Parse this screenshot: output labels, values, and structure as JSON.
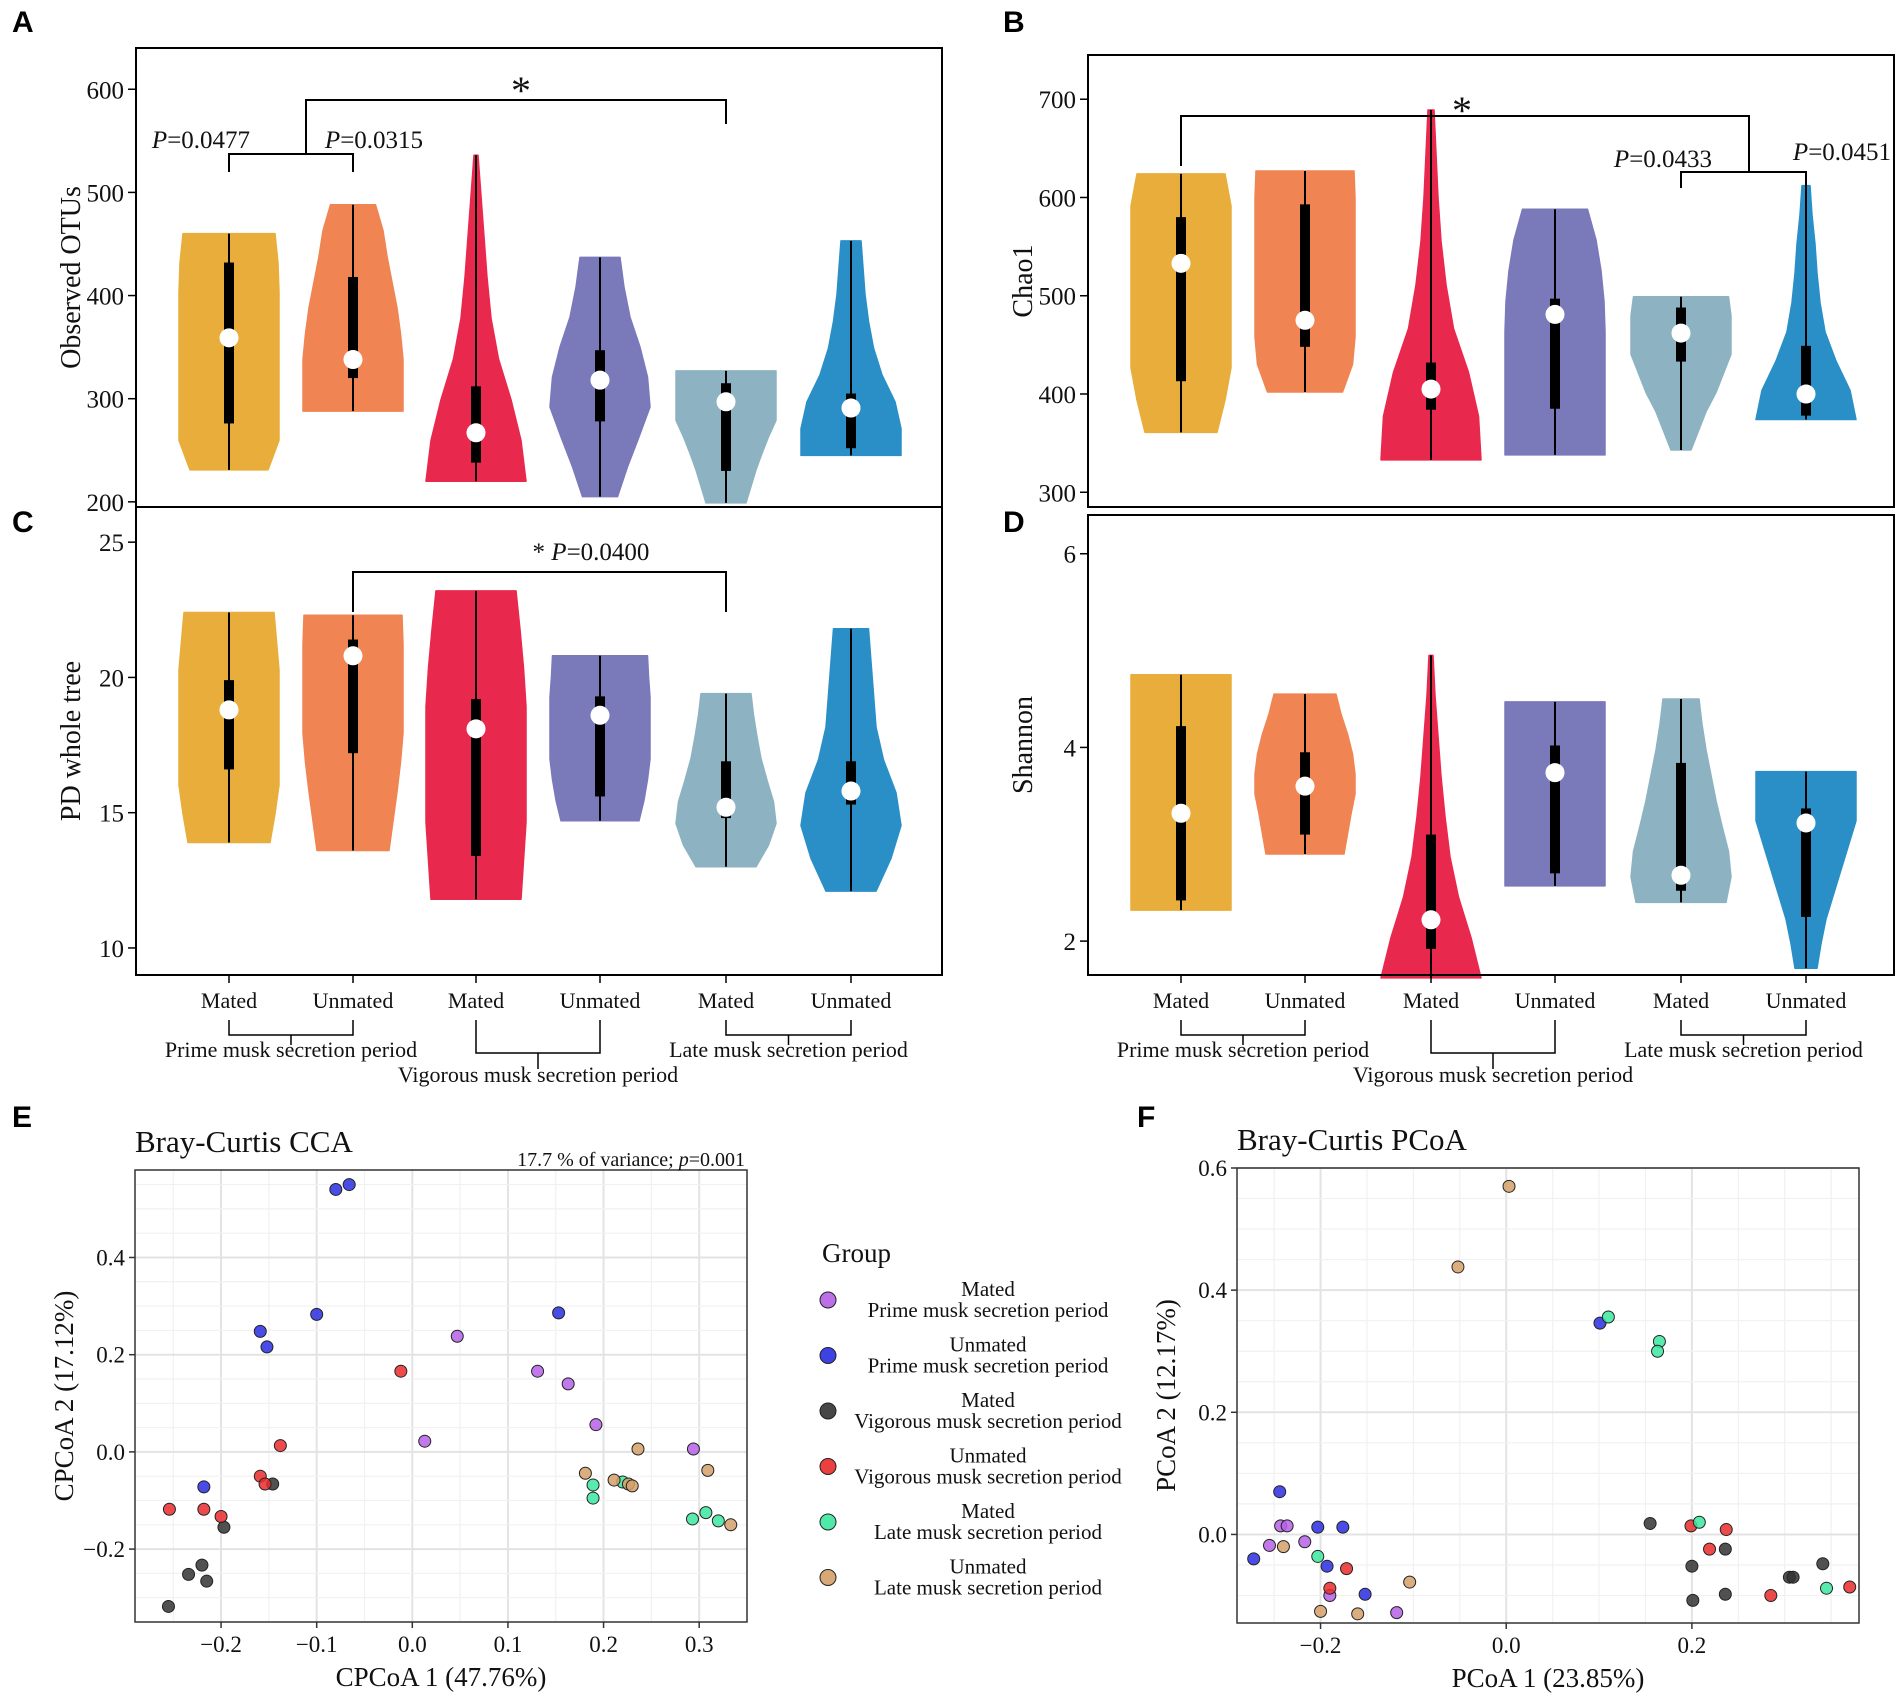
{
  "colors": {
    "violins": [
      "#e8ad3a",
      "#f08452",
      "#e9284e",
      "#7a79ba",
      "#8db3c2",
      "#2b8fc7"
    ],
    "groups": [
      "#b560e6",
      "#2a2ee0",
      "#333333",
      "#ea2b2b",
      "#3ce8a0",
      "#d4a067"
    ]
  },
  "x_categories": {
    "labels": [
      "Mated",
      "Unmated",
      "Mated",
      "Unmated",
      "Mated",
      "Unmated"
    ],
    "periods": [
      "Prime musk secretion period",
      "Vigorous musk secretion period",
      "Late musk secretion period"
    ]
  },
  "chart_data": [
    {
      "panel": "A",
      "type": "violin",
      "ylabel": "Observed OTUs",
      "ylim": [
        195,
        640
      ],
      "yticks": [
        200,
        300,
        400,
        500,
        600
      ],
      "violins": [
        {
          "min": 231,
          "max": 460,
          "q1": 276,
          "q3": 432,
          "median": 359,
          "profile": [
            0.78,
            1,
            1,
            1,
            1,
            1,
            1,
            0.98,
            0.92
          ]
        },
        {
          "min": 288,
          "max": 488,
          "q1": 320,
          "q3": 418,
          "median": 338,
          "profile": [
            1,
            1,
            1,
            0.95,
            0.88,
            0.78,
            0.68,
            0.6,
            0.45
          ]
        },
        {
          "min": 220,
          "max": 536,
          "q1": 238,
          "q3": 312,
          "median": 267,
          "profile": [
            1,
            0.9,
            0.7,
            0.45,
            0.3,
            0.22,
            0.16,
            0.1,
            0.04
          ]
        },
        {
          "min": 205,
          "max": 437,
          "q1": 278,
          "q3": 347,
          "median": 318,
          "profile": [
            0.35,
            0.55,
            0.78,
            1,
            0.95,
            0.8,
            0.6,
            0.48,
            0.4
          ]
        },
        {
          "min": 199,
          "max": 327,
          "q1": 230,
          "q3": 315,
          "median": 297,
          "profile": [
            0.4,
            0.5,
            0.6,
            0.72,
            0.85,
            1,
            1,
            1,
            1
          ]
        },
        {
          "min": 245,
          "max": 453,
          "q1": 252,
          "q3": 305,
          "median": 291,
          "profile": [
            1,
            1,
            0.88,
            0.62,
            0.45,
            0.35,
            0.28,
            0.24,
            0.2
          ]
        }
      ],
      "annotations": [
        {
          "text": "P=0.0477",
          "from": 0,
          "to": 1
        },
        {
          "text": "P=0.0315",
          "from": 1,
          "to": 1
        },
        {
          "text": "*",
          "from": 0.5,
          "to": 4
        }
      ]
    },
    {
      "panel": "B",
      "type": "violin",
      "ylabel": "Chao1",
      "ylim": [
        285,
        745
      ],
      "yticks": [
        300,
        400,
        500,
        600,
        700
      ],
      "violins": [
        {
          "min": 361,
          "max": 624,
          "q1": 413,
          "q3": 580,
          "median": 533,
          "profile": [
            0.72,
            0.88,
            1,
            1,
            1,
            1,
            1,
            1,
            0.88
          ]
        },
        {
          "min": 402,
          "max": 627,
          "q1": 448,
          "q3": 593,
          "median": 475,
          "profile": [
            0.75,
            0.95,
            1,
            1,
            1,
            1,
            1,
            1,
            0.98
          ]
        },
        {
          "min": 333,
          "max": 689,
          "q1": 384,
          "q3": 432,
          "median": 405,
          "profile": [
            1,
            0.95,
            0.75,
            0.45,
            0.3,
            0.2,
            0.14,
            0.1,
            0.06
          ]
        },
        {
          "min": 338,
          "max": 588,
          "q1": 385,
          "q3": 497,
          "median": 481,
          "profile": [
            1,
            1,
            1,
            1,
            1,
            0.98,
            0.92,
            0.82,
            0.65
          ]
        },
        {
          "min": 343,
          "max": 499,
          "q1": 433,
          "q3": 488,
          "median": 462,
          "profile": [
            0.2,
            0.35,
            0.5,
            0.7,
            0.85,
            1,
            1,
            1,
            0.95
          ]
        },
        {
          "min": 374,
          "max": 612,
          "q1": 378,
          "q3": 449,
          "median": 400,
          "profile": [
            1,
            0.88,
            0.6,
            0.38,
            0.28,
            0.22,
            0.18,
            0.12,
            0.08
          ]
        }
      ],
      "annotations": [
        {
          "text": "*",
          "from": 0,
          "to": 4.5
        },
        {
          "text": "P=0.0433",
          "from": 4,
          "to": 4
        },
        {
          "text": "P=0.0451",
          "from": 4,
          "to": 5
        }
      ]
    },
    {
      "panel": "C",
      "type": "violin",
      "ylabel": "PD whole tree",
      "ylim": [
        9,
        26.3
      ],
      "yticks": [
        10,
        15,
        20,
        25
      ],
      "violins": [
        {
          "min": 13.9,
          "max": 22.4,
          "q1": 16.6,
          "q3": 19.9,
          "median": 18.8,
          "profile": [
            0.82,
            0.92,
            1,
            1,
            1,
            1,
            1,
            0.95,
            0.9
          ]
        },
        {
          "min": 13.6,
          "max": 22.3,
          "q1": 17.2,
          "q3": 21.4,
          "median": 20.8,
          "profile": [
            0.72,
            0.8,
            0.88,
            0.95,
            1,
            1,
            1,
            1,
            0.98
          ]
        },
        {
          "min": 11.8,
          "max": 23.2,
          "q1": 13.4,
          "q3": 19.2,
          "median": 18.1,
          "profile": [
            0.9,
            0.95,
            1,
            1,
            1,
            1,
            0.95,
            0.88,
            0.8
          ]
        },
        {
          "min": 14.7,
          "max": 20.8,
          "q1": 15.6,
          "q3": 19.3,
          "median": 18.6,
          "profile": [
            0.78,
            0.88,
            0.95,
            1,
            1,
            1,
            1,
            0.97,
            0.95
          ]
        },
        {
          "min": 13.0,
          "max": 19.4,
          "q1": 14.8,
          "q3": 16.9,
          "median": 15.2,
          "profile": [
            0.6,
            0.85,
            1,
            0.95,
            0.82,
            0.7,
            0.62,
            0.55,
            0.5
          ]
        },
        {
          "min": 12.1,
          "max": 21.8,
          "q1": 15.3,
          "q3": 16.9,
          "median": 15.8,
          "profile": [
            0.5,
            0.8,
            1,
            0.9,
            0.65,
            0.5,
            0.45,
            0.4,
            0.35
          ]
        }
      ],
      "annotations": [
        {
          "text": "* P=0.0400",
          "from": 1,
          "to": 4
        }
      ]
    },
    {
      "panel": "D",
      "type": "violin",
      "ylabel": "Shannon",
      "ylim": [
        1.65,
        6.4
      ],
      "yticks": [
        2,
        4,
        6
      ],
      "violins": [
        {
          "min": 2.32,
          "max": 4.75,
          "q1": 2.42,
          "q3": 4.22,
          "median": 3.32,
          "profile": [
            1,
            1,
            1,
            1,
            1,
            1,
            1,
            1,
            1
          ]
        },
        {
          "min": 2.9,
          "max": 4.55,
          "q1": 3.1,
          "q3": 3.95,
          "median": 3.6,
          "profile": [
            0.78,
            0.85,
            0.92,
            1,
            1,
            0.95,
            0.85,
            0.72,
            0.62
          ]
        },
        {
          "min": 1.62,
          "max": 4.95,
          "q1": 1.92,
          "q3": 3.1,
          "median": 2.22,
          "profile": [
            1,
            0.8,
            0.55,
            0.38,
            0.28,
            0.2,
            0.14,
            0.08,
            0.04
          ]
        },
        {
          "min": 2.57,
          "max": 4.47,
          "q1": 2.7,
          "q3": 4.02,
          "median": 3.74,
          "profile": [
            1,
            1,
            1,
            1,
            1,
            1,
            1,
            1,
            1
          ]
        },
        {
          "min": 2.4,
          "max": 4.5,
          "q1": 2.52,
          "q3": 3.84,
          "median": 2.68,
          "profile": [
            0.9,
            1,
            0.95,
            0.82,
            0.7,
            0.6,
            0.5,
            0.42,
            0.36
          ]
        },
        {
          "min": 1.72,
          "max": 3.75,
          "q1": 2.25,
          "q3": 3.37,
          "median": 3.22,
          "profile": [
            0.22,
            0.3,
            0.4,
            0.55,
            0.7,
            0.85,
            1,
            1,
            1
          ]
        }
      ],
      "annotations": []
    },
    {
      "panel": "E",
      "type": "scatter",
      "title": "Bray-Curtis CCA",
      "subtitle": "17.7 % of variance; p=0.001",
      "xlabel": "CPCoA 1 (47.76%)",
      "ylabel": "CPCoA 2 (17.12%)",
      "xlim": [
        -0.29,
        0.35
      ],
      "ylim": [
        -0.35,
        0.58
      ],
      "xticks": [
        -0.2,
        -0.1,
        0.0,
        0.1,
        0.2,
        0.3
      ],
      "yticks": [
        -0.2,
        0.0,
        0.2,
        0.4
      ],
      "series": [
        {
          "name": "Mated Prime musk secretion period",
          "points": [
            [
              0.047,
              0.238
            ],
            [
              0.013,
              0.022
            ],
            [
              0.131,
              0.166
            ],
            [
              0.163,
              0.14
            ],
            [
              0.192,
              0.056
            ],
            [
              0.294,
              0.006
            ]
          ]
        },
        {
          "name": "Unmated Prime musk secretion period",
          "points": [
            [
              -0.08,
              0.54
            ],
            [
              -0.066,
              0.55
            ],
            [
              -0.1,
              0.283
            ],
            [
              -0.159,
              0.248
            ],
            [
              -0.152,
              0.216
            ],
            [
              0.153,
              0.286
            ],
            [
              -0.218,
              -0.072
            ]
          ]
        },
        {
          "name": "Mated Vigorous musk secretion period",
          "points": [
            [
              -0.146,
              -0.066
            ],
            [
              -0.197,
              -0.155
            ],
            [
              -0.22,
              -0.233
            ],
            [
              -0.234,
              -0.252
            ],
            [
              -0.215,
              -0.266
            ],
            [
              -0.255,
              -0.318
            ]
          ]
        },
        {
          "name": "Unmated Vigorous musk secretion period",
          "points": [
            [
              -0.012,
              0.166
            ],
            [
              -0.138,
              0.013
            ],
            [
              -0.159,
              -0.05
            ],
            [
              -0.154,
              -0.066
            ],
            [
              -0.254,
              -0.118
            ],
            [
              -0.218,
              -0.118
            ],
            [
              -0.2,
              -0.133
            ]
          ]
        },
        {
          "name": "Mated Late musk secretion period",
          "points": [
            [
              0.189,
              -0.068
            ],
            [
              0.189,
              -0.095
            ],
            [
              0.22,
              -0.062
            ],
            [
              0.293,
              -0.138
            ],
            [
              0.307,
              -0.125
            ],
            [
              0.32,
              -0.142
            ]
          ]
        },
        {
          "name": "Unmated Late musk secretion period",
          "points": [
            [
              0.236,
              0.006
            ],
            [
              0.181,
              -0.044
            ],
            [
              0.211,
              -0.058
            ],
            [
              0.226,
              -0.066
            ],
            [
              0.23,
              -0.07
            ],
            [
              0.309,
              -0.038
            ],
            [
              0.333,
              -0.15
            ]
          ]
        }
      ]
    },
    {
      "panel": "F",
      "type": "scatter",
      "title": "Bray-Curtis PCoA",
      "xlabel": "PCoA 1 (23.85%)",
      "ylabel": "PCoA 2 (12.17%)",
      "xlim": [
        -0.29,
        0.38
      ],
      "ylim": [
        -0.145,
        0.6
      ],
      "xticks": [
        -0.2,
        0.0,
        0.2
      ],
      "yticks": [
        0.0,
        0.2,
        0.4,
        0.6
      ],
      "series": [
        {
          "name": "Mated Prime musk secretion period",
          "points": [
            [
              -0.243,
              0.014
            ],
            [
              -0.236,
              0.014
            ],
            [
              -0.255,
              -0.018
            ],
            [
              -0.217,
              -0.012
            ],
            [
              -0.19,
              -0.1
            ],
            [
              -0.118,
              -0.128
            ]
          ]
        },
        {
          "name": "Unmated Prime musk secretion period",
          "points": [
            [
              -0.244,
              0.07
            ],
            [
              -0.203,
              0.012
            ],
            [
              -0.176,
              0.012
            ],
            [
              -0.272,
              -0.04
            ],
            [
              -0.193,
              -0.052
            ],
            [
              -0.152,
              -0.098
            ],
            [
              0.101,
              0.346
            ]
          ]
        },
        {
          "name": "Mated Vigorous musk secretion period",
          "points": [
            [
              0.155,
              0.018
            ],
            [
              0.2,
              -0.052
            ],
            [
              0.236,
              -0.024
            ],
            [
              0.201,
              -0.108
            ],
            [
              0.236,
              -0.098
            ],
            [
              0.305,
              -0.07
            ],
            [
              0.309,
              -0.07
            ],
            [
              0.341,
              -0.048
            ]
          ]
        },
        {
          "name": "Unmated Vigorous musk secretion period",
          "points": [
            [
              -0.19,
              -0.088
            ],
            [
              -0.172,
              -0.056
            ],
            [
              0.199,
              0.014
            ],
            [
              0.219,
              -0.024
            ],
            [
              0.237,
              0.008
            ],
            [
              0.285,
              -0.1
            ],
            [
              0.37,
              -0.086
            ]
          ]
        },
        {
          "name": "Mated Late musk secretion period",
          "points": [
            [
              0.11,
              0.356
            ],
            [
              0.165,
              0.316
            ],
            [
              0.163,
              0.3
            ],
            [
              0.208,
              0.02
            ],
            [
              -0.203,
              -0.036
            ],
            [
              0.345,
              -0.088
            ]
          ]
        },
        {
          "name": "Unmated Late musk secretion period",
          "points": [
            [
              0.003,
              0.57
            ],
            [
              -0.052,
              0.438
            ],
            [
              -0.24,
              -0.02
            ],
            [
              -0.2,
              -0.126
            ],
            [
              -0.16,
              -0.13
            ],
            [
              -0.104,
              -0.078
            ]
          ]
        }
      ]
    }
  ],
  "legend": {
    "title": "Group",
    "items": [
      {
        "line1": "Mated",
        "line2": "Prime musk secretion period"
      },
      {
        "line1": "Unmated",
        "line2": "Prime musk secretion period"
      },
      {
        "line1": "Mated",
        "line2": "Vigorous musk secretion period"
      },
      {
        "line1": "Unmated",
        "line2": "Vigorous musk secretion period"
      },
      {
        "line1": "Mated",
        "line2": "Late musk secretion period"
      },
      {
        "line1": "Unmated",
        "line2": "Late musk secretion period"
      }
    ]
  }
}
